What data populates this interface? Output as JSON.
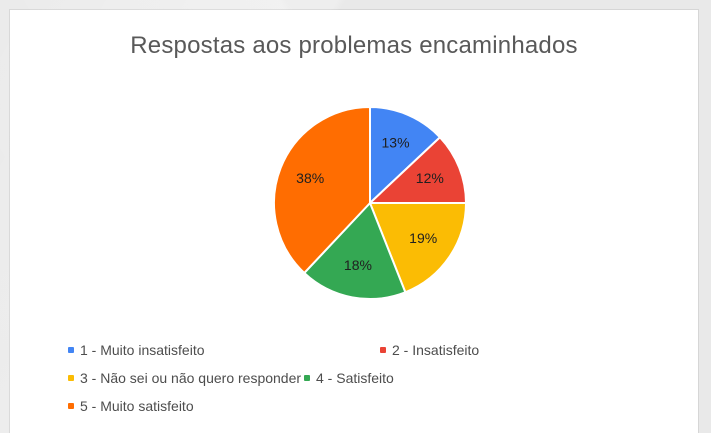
{
  "chart_data": {
    "type": "pie",
    "title": "Respostas aos problemas encaminhados",
    "slices": [
      {
        "label": "1 - Muito insatisfeito",
        "value": 13,
        "display": "13%",
        "color": "#4285f4"
      },
      {
        "label": "2 - Insatisfeito",
        "value": 12,
        "display": "12%",
        "color": "#ea4335"
      },
      {
        "label": "3 - Não sei ou não quero responder",
        "value": 19,
        "display": "19%",
        "color": "#fbbc04"
      },
      {
        "label": "4 - Satisfeito",
        "value": 18,
        "display": "18%",
        "color": "#34a853"
      },
      {
        "label": "5 - Muito satisfeito",
        "value": 38,
        "display": "38%",
        "color": "#ff6d01"
      }
    ],
    "legend": "bottom",
    "grid": false
  }
}
